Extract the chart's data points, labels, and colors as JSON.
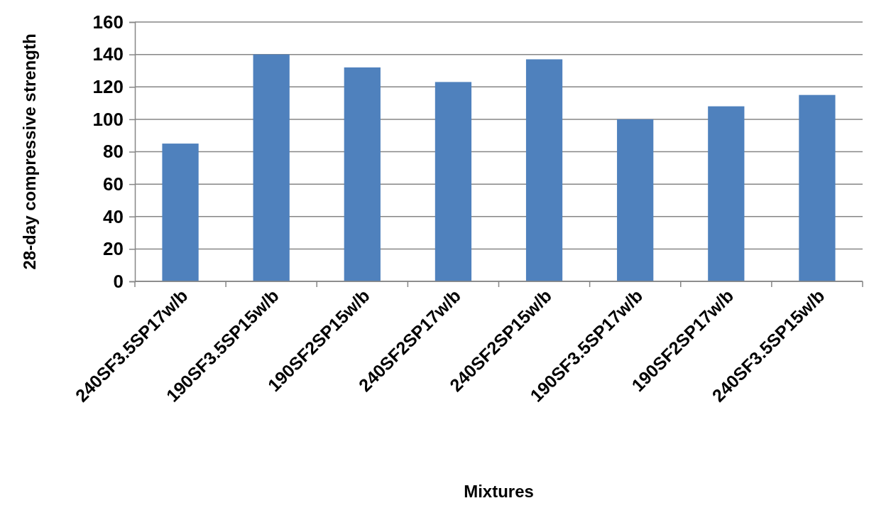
{
  "chart_data": {
    "type": "bar",
    "xlabel": "Mixtures",
    "ylabel": "28-day compressive strength",
    "categories": [
      "240SF3.5SP17w/b",
      "190SF3.5SP15w/b",
      "190SF2SP15w/b",
      "240SF2SP17w/b",
      "240SF2SP15w/b",
      "190SF3.5SP17w/b",
      "190SF2SP17w/b",
      "240SF3.5SP15w/b"
    ],
    "values": [
      85,
      140,
      132,
      123,
      137,
      100,
      108,
      115
    ],
    "color": "#4f81bd",
    "ylim": [
      0,
      160
    ],
    "yticks": [
      0,
      20,
      40,
      60,
      80,
      100,
      120,
      140,
      160
    ],
    "grid": "y"
  }
}
